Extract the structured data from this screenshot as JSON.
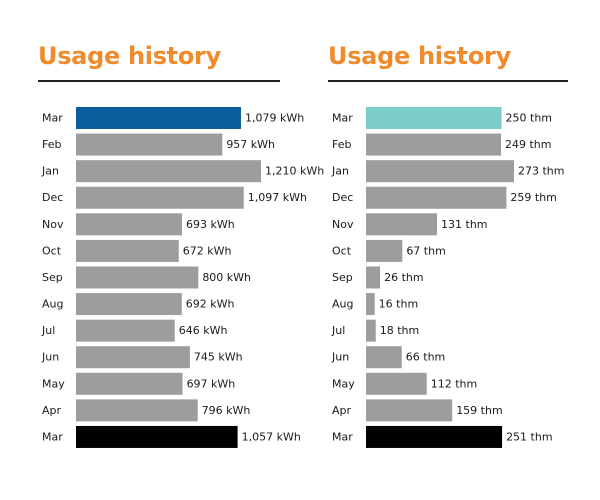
{
  "colors": {
    "title": "#ef8b2c",
    "bar_gray": "#9d9d9f",
    "electric_current": "#0a5f9c",
    "gas_current": "#7cccc8",
    "last_year": "#000000"
  },
  "chart_data": [
    {
      "type": "bar",
      "orientation": "horizontal",
      "title": "Usage history",
      "unit": "kWh",
      "categories": [
        "Mar",
        "Feb",
        "Jan",
        "Dec",
        "Nov",
        "Oct",
        "Sep",
        "Aug",
        "Jul",
        "Jun",
        "May",
        "Apr",
        "Mar"
      ],
      "values": [
        1079,
        957,
        1210,
        1097,
        693,
        672,
        800,
        692,
        646,
        745,
        697,
        796,
        1057
      ],
      "value_labels": [
        "1,079 kWh",
        "957 kWh",
        "1,210 kWh",
        "1,097 kWh",
        "693 kWh",
        "672 kWh",
        "800 kWh",
        "692 kWh",
        "646 kWh",
        "745 kWh",
        "697 kWh",
        "796 kWh",
        "1,057 kWh"
      ],
      "bar_colors": [
        "#0a5f9c",
        "#9d9d9f",
        "#9d9d9f",
        "#9d9d9f",
        "#9d9d9f",
        "#9d9d9f",
        "#9d9d9f",
        "#9d9d9f",
        "#9d9d9f",
        "#9d9d9f",
        "#9d9d9f",
        "#9d9d9f",
        "#000000"
      ],
      "xlim": [
        0,
        1400
      ],
      "grid": false
    },
    {
      "type": "bar",
      "orientation": "horizontal",
      "title": "Usage history",
      "unit": "thm",
      "categories": [
        "Mar",
        "Feb",
        "Jan",
        "Dec",
        "Nov",
        "Oct",
        "Sep",
        "Aug",
        "Jul",
        "Jun",
        "May",
        "Apr",
        "Mar"
      ],
      "values": [
        250,
        249,
        273,
        259,
        131,
        67,
        26,
        16,
        18,
        66,
        112,
        159,
        251
      ],
      "value_labels": [
        "250 thm",
        "249 thm",
        "273 thm",
        "259 thm",
        "131 thm",
        "67 thm",
        "26 thm",
        "16 thm",
        "18 thm",
        "66 thm",
        "112 thm",
        "159 thm",
        "251 thm"
      ],
      "bar_colors": [
        "#7cccc8",
        "#9d9d9f",
        "#9d9d9f",
        "#9d9d9f",
        "#9d9d9f",
        "#9d9d9f",
        "#9d9d9f",
        "#9d9d9f",
        "#9d9d9f",
        "#9d9d9f",
        "#9d9d9f",
        "#9d9d9f",
        "#000000"
      ],
      "xlim": [
        0,
        300
      ],
      "grid": false
    }
  ]
}
